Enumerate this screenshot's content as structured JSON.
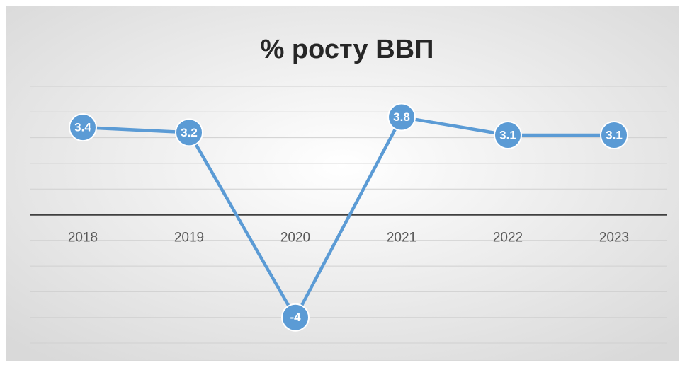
{
  "chart_data": {
    "type": "line",
    "title": "% росту ВВП",
    "categories": [
      "2018",
      "2019",
      "2020",
      "2021",
      "2022",
      "2023"
    ],
    "series": [
      {
        "name": "% росту ВВП",
        "color": "#5b9bd5",
        "values": [
          3.4,
          3.2,
          -4,
          3.8,
          3.1,
          3.1
        ]
      }
    ],
    "ylim": [
      -5,
      5
    ],
    "yticks": [
      -5,
      -4,
      -3,
      -2,
      -1,
      0,
      1,
      2,
      3,
      4,
      5
    ],
    "grid": true,
    "data_labels": true
  }
}
